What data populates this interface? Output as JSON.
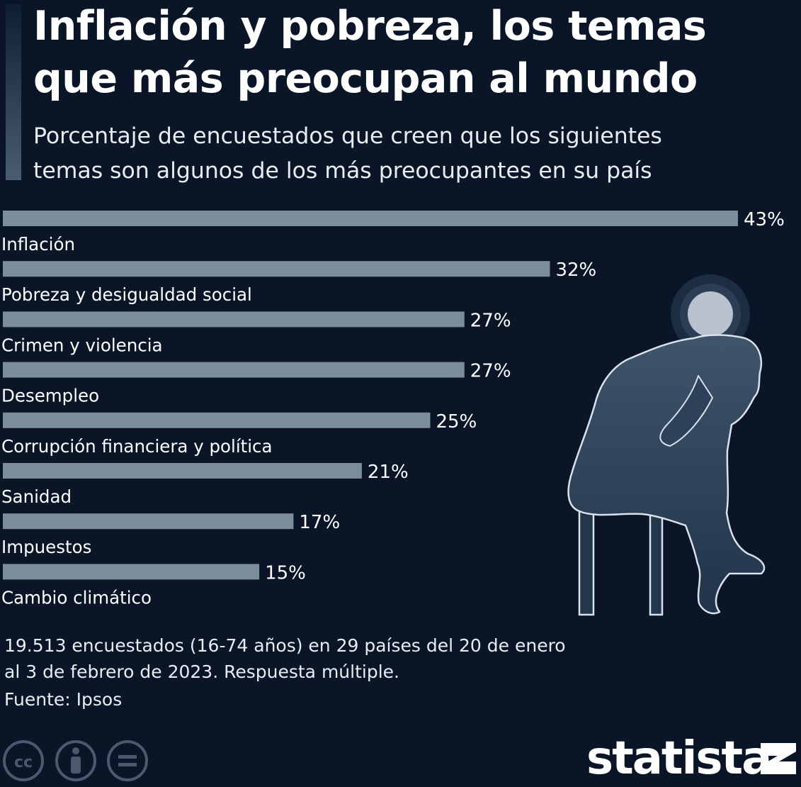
{
  "header": {
    "title_line1": "Inflación y pobreza, los temas",
    "title_line2": "que más preocupan al mundo",
    "subtitle_line1": "Porcentaje de encuestados que creen que los siguientes",
    "subtitle_line2": "temas son algunos de los más preocupantes en su país"
  },
  "chart_data": {
    "type": "bar",
    "orientation": "horizontal",
    "categories": [
      "Inflación",
      "Pobreza y desigualdad social",
      "Crimen y violencia",
      "Desempleo",
      "Corrupción financiera y política",
      "Sanidad",
      "Impuestos",
      "Cambio climático"
    ],
    "values": [
      43,
      32,
      27,
      27,
      25,
      21,
      17,
      15
    ],
    "value_suffix": "%",
    "xlim": [
      0,
      43
    ],
    "grid": false,
    "bar_color": "#7b8d9c"
  },
  "footer": {
    "note_line1": "19.513 encuestados (16-74 años) en 29 países del 20 de enero",
    "note_line2": "al 3 de febrero de 2023. Respuesta múltiple.",
    "source": "Fuente: Ipsos",
    "brand": "statista"
  },
  "icons": {
    "license": [
      "creative-commons-icon",
      "attribution-icon",
      "no-derivatives-icon"
    ],
    "illustration": "worried-person-icon"
  },
  "colors": {
    "background": "#0a1628",
    "bar": "#7b8d9c",
    "text": "#ffffff"
  }
}
